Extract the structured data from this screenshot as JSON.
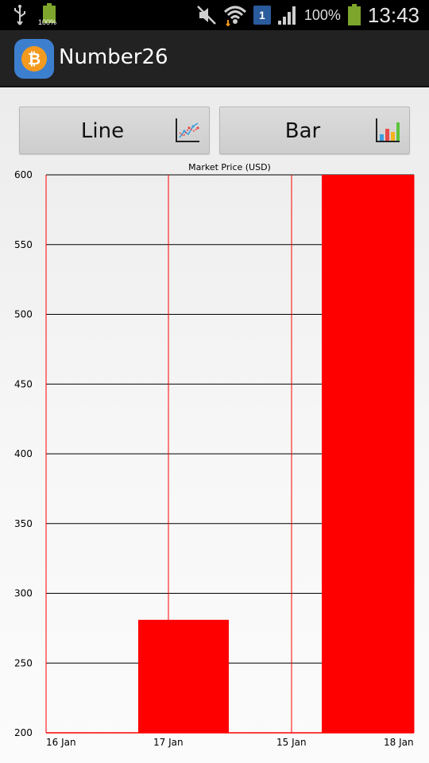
{
  "status_bar": {
    "battery_small_text": "100%",
    "battery_text": "100%",
    "sim_badge": "1",
    "time": "13:43",
    "icons": [
      "usb-icon",
      "battery-icon",
      "mute-icon",
      "wifi-icon",
      "signal-icon"
    ]
  },
  "action_bar": {
    "title": "Number26",
    "icon": "bitcoin-icon"
  },
  "buttons": {
    "line_label": "Line",
    "bar_label": "Bar"
  },
  "colors": {
    "bar": "#ff0000",
    "vgrid": "#ff0000",
    "hgrid": "#000000"
  },
  "chart_data": {
    "type": "bar",
    "title": "Market Price (USD)",
    "xlabel": "",
    "ylabel": "",
    "ylim": [
      200,
      600
    ],
    "yticks": [
      600,
      550,
      500,
      450,
      400,
      350,
      300,
      250,
      200
    ],
    "xticks": [
      "16 Jan",
      "17 Jan",
      "15 Jan",
      "18 Jan"
    ],
    "categories": [
      "16 Jan",
      "17 Jan",
      "15 Jan",
      "18 Jan"
    ],
    "values": [
      200,
      281,
      200,
      600
    ],
    "grid": true
  }
}
